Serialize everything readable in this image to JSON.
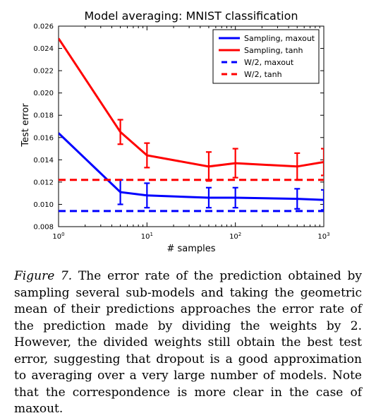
{
  "chart_data": {
    "type": "line",
    "title": "Model averaging: MNIST classification",
    "xlabel": "# samples",
    "ylabel": "Test error",
    "xscale": "log",
    "xlim": [
      1,
      1000
    ],
    "ylim": [
      0.008,
      0.026
    ],
    "xticks": [
      1,
      10,
      100,
      1000
    ],
    "xtick_labels": [
      {
        "base": "10",
        "exp": "0"
      },
      {
        "base": "10",
        "exp": "1"
      },
      {
        "base": "10",
        "exp": "2"
      },
      {
        "base": "10",
        "exp": "3"
      }
    ],
    "yticks": [
      0.008,
      0.01,
      0.012,
      0.014,
      0.016,
      0.018,
      0.02,
      0.022,
      0.024,
      0.026
    ],
    "ytick_labels": [
      "0.008",
      "0.010",
      "0.012",
      "0.014",
      "0.016",
      "0.018",
      "0.020",
      "0.022",
      "0.024",
      "0.026"
    ],
    "legend_position": "top-right",
    "series": [
      {
        "name": "Sampling, maxout",
        "style": "solid",
        "color": "#0000ff",
        "x": [
          1,
          5,
          10,
          50,
          100,
          500,
          1000
        ],
        "y": [
          0.0164,
          0.0111,
          0.0108,
          0.0106,
          0.0106,
          0.0105,
          0.0104
        ],
        "err": [
          0,
          0.0011,
          0.0011,
          0.0009,
          0.0009,
          0.0009,
          0.0009
        ]
      },
      {
        "name": "Sampling, tanh",
        "style": "solid",
        "color": "#ff0000",
        "x": [
          1,
          5,
          10,
          50,
          100,
          500,
          1000
        ],
        "y": [
          0.0249,
          0.0165,
          0.0144,
          0.0134,
          0.0137,
          0.0134,
          0.0138
        ],
        "err": [
          0,
          0.0011,
          0.0011,
          0.0013,
          0.0013,
          0.0012,
          0.0012
        ]
      },
      {
        "name": "W/2, maxout",
        "style": "dashed",
        "color": "#0000ff",
        "x": [
          1,
          1000
        ],
        "y": [
          0.0094,
          0.0094
        ]
      },
      {
        "name": "W/2, tanh",
        "style": "dashed",
        "color": "#ff0000",
        "x": [
          1,
          1000
        ],
        "y": [
          0.0122,
          0.0122
        ]
      }
    ]
  },
  "caption": {
    "label": "Figure 7.",
    "text": "The error rate of the prediction obtained by sampling several sub-models and taking the geometric mean of their predictions approaches the error rate of the prediction made by dividing the weights by 2. However, the divided weights still obtain the best test error, suggesting that dropout is a good approximation to averaging over a very large number of models. Note that the correspondence is more clear in the case of maxout."
  }
}
